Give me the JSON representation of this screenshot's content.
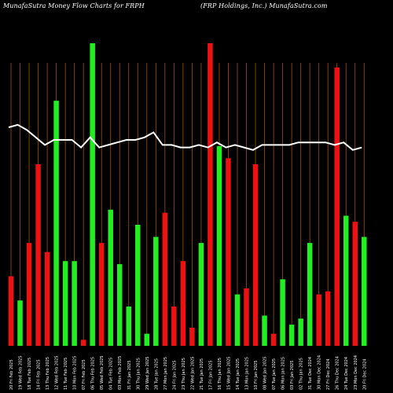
{
  "header": {
    "left": "MunafaSutra  Money Flow  Charts for FRPH",
    "right": "(FRP Holdings, Inc.) MunafaSutra.com"
  },
  "colors": {
    "background": "#000000",
    "grid": "#a0520f",
    "up": "#22ee22",
    "down": "#ee1111",
    "line": "#ffffff"
  },
  "chart_data": {
    "type": "bar",
    "grid": "vertical",
    "values_note": "bar heights read as relative money flow (0-100 scale of plot height)",
    "categories": [
      "20 Fri Feb 2025",
      "19 Wed Feb 2025",
      "18 Tue Feb 2025",
      "14 Fri Feb 2025",
      "13 Thu Feb 2025",
      "12 Wed Feb 2025",
      "11 Tue Feb 2025",
      "10 Mon Feb 2025",
      "07 Fri Feb 2025",
      "06 Thu Feb 2025",
      "05 Wed Feb 2025",
      "04 Tue Feb 2025",
      "03 Mon Feb 2025",
      "31 Fri Jan 2025",
      "30 Thu Jan 2025",
      "29 Wed Jan 2025",
      "28 Tue Jan 2025",
      "27 Mon Jan 2025",
      "24 Fri Jan 2025",
      "23 Thu Jan 2025",
      "22 Wed Jan 2025",
      "21 Tue Jan 2025",
      "17 Fri Jan 2025",
      "16 Thu Jan 2025",
      "15 Wed Jan 2025",
      "14 Tue Jan 2025",
      "13 Mon Jan 2025",
      "10 Fri Jan 2025",
      "08 Wed Jan 2025",
      "07 Tue Jan 2025",
      "06 Mon Jan 2025",
      "03 Fri Jan 2025",
      "02 Thu Jan 2025",
      "31 Tue Dec 2024",
      "30 Mon Dec 2024",
      "27 Fri Dec 2024",
      "26 Thu Dec 2024",
      "24 Tue Dec 2024",
      "23 Mon Dec 2024",
      "20 Fri Dec 2024"
    ],
    "x_labels": [
      "20 Fri Feb 2025",
      "19 Wed Feb 2025",
      "18 Tue Feb 2025",
      "14 Fri Feb 2025",
      "13 Thu Feb 2025",
      "12 Wed Feb 2025",
      "11 Tue Feb 2025",
      "10 Mon Feb 2025",
      "07 Fri Feb 2025",
      "06 Thu Feb 2025",
      "05 Wed Feb 2025",
      "04 Tue Feb 2025",
      "03 Mon Feb 2025",
      "31 Fri Jan 2025",
      "30 Thu Jan 2025",
      "29 Wed Jan 2025",
      "28 Tue Jan 2025",
      "27 Mon Jan 2025",
      "24 Fri Jan 2025",
      "23 Thu Jan 2025",
      "22 Wed Jan 2025",
      "21 Tue Jan 2025",
      "17 Fri Jan 2025",
      "16 Thu Jan 2025",
      "15 Wed Jan 2025",
      "14 Tue Jan 2025",
      "13 Mon Jan 2025",
      "10 Fri Jan 2025",
      "08 Wed Jan 2025",
      "07 Tue Jan 2025",
      "06 Mon Jan 2025",
      "03 Fri Jan 2025",
      "02 Thu Jan 2025",
      "31 Tue Dec 2024",
      "30 Mon Dec 2024",
      "27 Fri Dec 2024",
      "26 Thu Dec 2024",
      "24 Tue Dec 2024",
      "23 Mon Dec 2024",
      "20 Fri Dec 2024"
    ],
    "ylim": [
      0,
      100
    ],
    "bars": [
      {
        "v": 23,
        "c": "down"
      },
      {
        "v": 15,
        "c": "up"
      },
      {
        "v": 34,
        "c": "down"
      },
      {
        "v": 60,
        "c": "down"
      },
      {
        "v": 31,
        "c": "down"
      },
      {
        "v": 81,
        "c": "up"
      },
      {
        "v": 28,
        "c": "up"
      },
      {
        "v": 28,
        "c": "up"
      },
      {
        "v": 2,
        "c": "down"
      },
      {
        "v": 100,
        "c": "up"
      },
      {
        "v": 34,
        "c": "down"
      },
      {
        "v": 45,
        "c": "up"
      },
      {
        "v": 27,
        "c": "up"
      },
      {
        "v": 13,
        "c": "up"
      },
      {
        "v": 40,
        "c": "up"
      },
      {
        "v": 4,
        "c": "up"
      },
      {
        "v": 36,
        "c": "up"
      },
      {
        "v": 44,
        "c": "down"
      },
      {
        "v": 13,
        "c": "down"
      },
      {
        "v": 28,
        "c": "down"
      },
      {
        "v": 6,
        "c": "down"
      },
      {
        "v": 34,
        "c": "up"
      },
      {
        "v": 100,
        "c": "down"
      },
      {
        "v": 66,
        "c": "up"
      },
      {
        "v": 62,
        "c": "down"
      },
      {
        "v": 17,
        "c": "up"
      },
      {
        "v": 19,
        "c": "down"
      },
      {
        "v": 60,
        "c": "down"
      },
      {
        "v": 10,
        "c": "up"
      },
      {
        "v": 4,
        "c": "down"
      },
      {
        "v": 22,
        "c": "up"
      },
      {
        "v": 7,
        "c": "up"
      },
      {
        "v": 9,
        "c": "up"
      },
      {
        "v": 34,
        "c": "up"
      },
      {
        "v": 17,
        "c": "down"
      },
      {
        "v": 18,
        "c": "down"
      },
      {
        "v": 92,
        "c": "down"
      },
      {
        "v": 43,
        "c": "up"
      },
      {
        "v": 41,
        "c": "down"
      },
      {
        "v": 36,
        "c": "up"
      }
    ],
    "line_values": [
      72,
      73,
      71,
      68,
      65,
      67,
      67,
      67,
      64,
      68,
      64,
      65,
      66,
      67,
      67,
      68,
      70,
      65,
      65,
      64,
      64,
      65,
      64,
      66,
      64,
      65,
      64,
      63,
      65,
      65,
      65,
      65,
      66,
      66,
      66,
      66,
      65,
      66,
      63,
      64
    ]
  }
}
